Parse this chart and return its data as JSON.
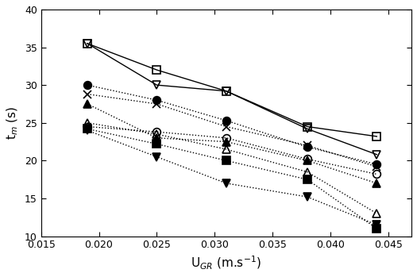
{
  "x": [
    0.019,
    0.025,
    0.031,
    0.038,
    0.044
  ],
  "series": [
    {
      "label": "open_square",
      "marker": "s",
      "fillstyle": "none",
      "linestyle": "-",
      "color": "black",
      "y": [
        35.5,
        32.0,
        29.2,
        24.5,
        23.2
      ],
      "markersize": 7
    },
    {
      "label": "open_inv_triangle",
      "marker": "v",
      "fillstyle": "none",
      "linestyle": "-",
      "color": "black",
      "y": [
        35.5,
        30.0,
        29.2,
        24.2,
        20.8
      ],
      "markersize": 7
    },
    {
      "label": "filled_circle",
      "marker": "o",
      "fillstyle": "full",
      "linestyle": ":",
      "color": "black",
      "y": [
        30.0,
        28.0,
        25.3,
        21.8,
        19.5
      ],
      "markersize": 7
    },
    {
      "label": "star_x",
      "marker": "P",
      "fillstyle": "full",
      "linestyle": ":",
      "color": "black",
      "y": [
        28.8,
        27.5,
        24.5,
        22.0,
        19.2
      ],
      "markersize": 7
    },
    {
      "label": "filled_triangle_up",
      "marker": "^",
      "fillstyle": "full",
      "linestyle": ":",
      "color": "black",
      "y": [
        27.5,
        23.0,
        22.5,
        20.0,
        17.0
      ],
      "markersize": 7
    },
    {
      "label": "open_triangle_up",
      "marker": "^",
      "fillstyle": "none",
      "linestyle": ":",
      "color": "black",
      "y": [
        25.0,
        23.5,
        21.5,
        18.5,
        13.0
      ],
      "markersize": 7
    },
    {
      "label": "open_circle",
      "marker": "o",
      "fillstyle": "none",
      "linestyle": ":",
      "color": "black",
      "y": [
        24.5,
        23.8,
        23.0,
        20.2,
        18.2
      ],
      "markersize": 7
    },
    {
      "label": "filled_square",
      "marker": "s",
      "fillstyle": "full",
      "linestyle": ":",
      "color": "black",
      "y": [
        24.2,
        22.2,
        20.0,
        17.5,
        11.0
      ],
      "markersize": 7
    },
    {
      "label": "filled_inv_triangle",
      "marker": "v",
      "fillstyle": "full",
      "linestyle": ":",
      "color": "black",
      "y": [
        24.0,
        20.5,
        17.0,
        15.2,
        11.5
      ],
      "markersize": 7
    }
  ],
  "xlim": [
    0.015,
    0.047
  ],
  "ylim": [
    10,
    40
  ],
  "xlabel": "U$_{GR}$ (m.s$^{-1}$)",
  "ylabel": "t$_{m}$ (s)",
  "xticks": [
    0.015,
    0.02,
    0.025,
    0.03,
    0.035,
    0.04,
    0.045
  ],
  "yticks": [
    10,
    15,
    20,
    25,
    30,
    35,
    40
  ],
  "background_color": "#ffffff"
}
